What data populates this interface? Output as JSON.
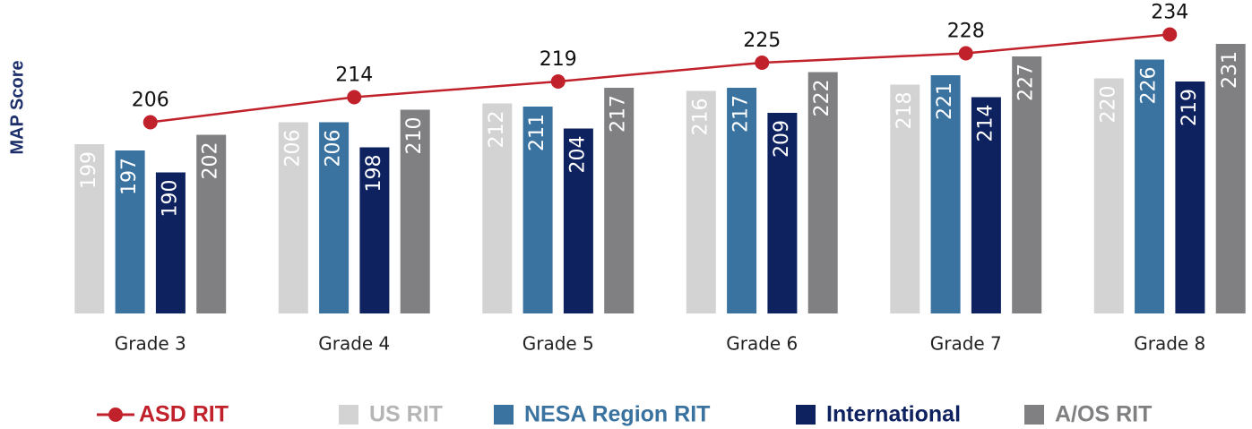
{
  "chart_data": {
    "type": "bar",
    "y_label": "MAP Score",
    "categories": [
      "Grade 3",
      "Grade 4",
      "Grade 5",
      "Grade 6",
      "Grade 7",
      "Grade 8"
    ],
    "ylim": [
      145,
      245
    ],
    "series": [
      {
        "name": "ASD RIT",
        "type": "line",
        "color": "#c0212b",
        "values": [
          206,
          214,
          219,
          225,
          228,
          234
        ]
      },
      {
        "name": "US RIT",
        "color": "#d3d3d3",
        "values": [
          199,
          206,
          212,
          216,
          218,
          220
        ]
      },
      {
        "name": "NESA Region RIT",
        "color": "#3a72a0",
        "values": [
          197,
          206,
          211,
          217,
          221,
          226
        ]
      },
      {
        "name": "International",
        "color": "#0f2260",
        "values": [
          190,
          198,
          204,
          209,
          214,
          219
        ]
      },
      {
        "name": "A/OS RIT",
        "color": "#808083",
        "values": [
          202,
          210,
          217,
          222,
          227,
          231
        ]
      }
    ]
  }
}
